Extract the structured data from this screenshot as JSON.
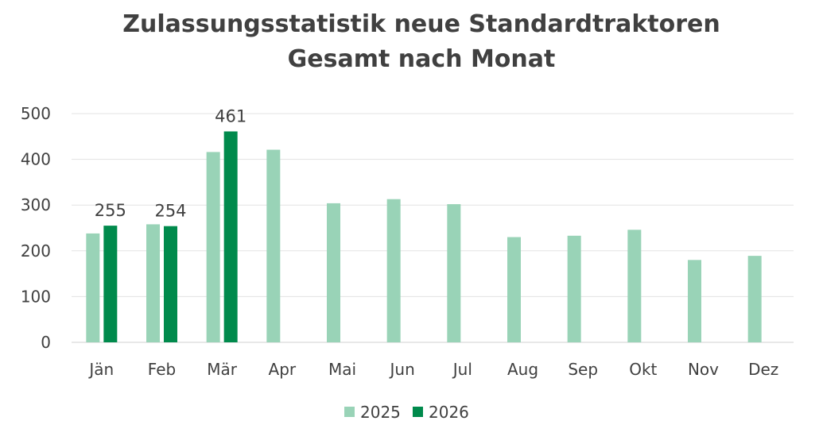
{
  "chart_data": {
    "type": "bar",
    "title": [
      "Zulassungsstatistik neue Standardtraktoren",
      "Gesamt nach Monat"
    ],
    "categories": [
      "Jän",
      "Feb",
      "Mär",
      "Apr",
      "Mai",
      "Jun",
      "Jul",
      "Aug",
      "Sep",
      "Okt",
      "Nov",
      "Dez"
    ],
    "series": [
      {
        "name": "2025",
        "color": "#99d3b7",
        "values": [
          238,
          258,
          416,
          421,
          304,
          313,
          302,
          230,
          233,
          246,
          180,
          189
        ]
      },
      {
        "name": "2026",
        "color": "#008a4c",
        "values": [
          255,
          254,
          461,
          null,
          null,
          null,
          null,
          null,
          null,
          null,
          null,
          null
        ],
        "data_labels": [
          "255",
          "254",
          "461"
        ]
      }
    ],
    "ylim": [
      0,
      500
    ],
    "yticks": [
      "0",
      "100",
      "200",
      "300",
      "400",
      "500"
    ],
    "grid": true,
    "legend": "bottom"
  }
}
